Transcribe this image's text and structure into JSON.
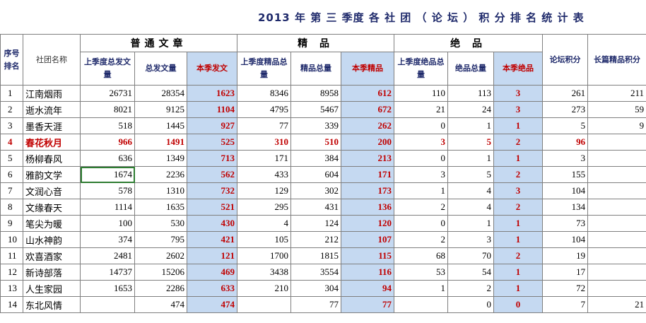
{
  "title": "2013 年 第 三 季度 各 社 团 （ 论 坛 ） 积 分   排 名 统 计 表",
  "headers": {
    "rank": "序号排名",
    "name": "社团名称",
    "group_regular": "普通文章",
    "group_jingpin": "精  品",
    "group_juepin": "绝  品",
    "prev_total_articles": "上季度总发文量",
    "total_articles": "总发文量",
    "this_quarter_articles": "本季发文",
    "prev_jingpin": "上季度精品总量",
    "total_jingpin": "精品总量",
    "this_quarter_jingpin": "本季精品",
    "prev_juepin": "上季度绝品总量",
    "total_juepin": "绝品总量",
    "this_quarter_juepin": "本季绝品",
    "forum_points": "论坛积分",
    "long_jingpin_points": "长篇精品积分"
  },
  "rows": [
    {
      "idx": "1",
      "name": "江南烟雨",
      "a1": "26731",
      "a2": "28354",
      "a3": "1623",
      "b1": "8346",
      "b2": "8958",
      "b3": "612",
      "c1": "110",
      "c2": "113",
      "c3": "3",
      "d": "261",
      "e": "211"
    },
    {
      "idx": "2",
      "name": "逝水流年",
      "a1": "8021",
      "a2": "9125",
      "a3": "1104",
      "b1": "4795",
      "b2": "5467",
      "b3": "672",
      "c1": "21",
      "c2": "24",
      "c3": "3",
      "d": "273",
      "e": "59"
    },
    {
      "idx": "3",
      "name": "墨香天涯",
      "a1": "518",
      "a2": "1445",
      "a3": "927",
      "b1": "77",
      "b2": "339",
      "b3": "262",
      "c1": "0",
      "c2": "1",
      "c3": "1",
      "d": "5",
      "e": "9"
    },
    {
      "idx": "4",
      "name": "春花秋月",
      "a1": "966",
      "a2": "1491",
      "a3": "525",
      "b1": "310",
      "b2": "510",
      "b3": "200",
      "c1": "3",
      "c2": "5",
      "c3": "2",
      "d": "96",
      "e": ""
    },
    {
      "idx": "5",
      "name": "杨柳春风",
      "a1": "636",
      "a2": "1349",
      "a3": "713",
      "b1": "171",
      "b2": "384",
      "b3": "213",
      "c1": "0",
      "c2": "1",
      "c3": "1",
      "d": "3",
      "e": ""
    },
    {
      "idx": "6",
      "name": "雅韵文学",
      "a1": "1674",
      "a2": "2236",
      "a3": "562",
      "b1": "433",
      "b2": "604",
      "b3": "171",
      "c1": "3",
      "c2": "5",
      "c3": "2",
      "d": "155",
      "e": ""
    },
    {
      "idx": "7",
      "name": "文润心音",
      "a1": "578",
      "a2": "1310",
      "a3": "732",
      "b1": "129",
      "b2": "302",
      "b3": "173",
      "c1": "1",
      "c2": "4",
      "c3": "3",
      "d": "104",
      "e": ""
    },
    {
      "idx": "8",
      "name": "文缘春天",
      "a1": "1114",
      "a2": "1635",
      "a3": "521",
      "b1": "295",
      "b2": "431",
      "b3": "136",
      "c1": "2",
      "c2": "4",
      "c3": "2",
      "d": "134",
      "e": ""
    },
    {
      "idx": "9",
      "name": "笔尖为暖",
      "a1": "100",
      "a2": "530",
      "a3": "430",
      "b1": "4",
      "b2": "124",
      "b3": "120",
      "c1": "0",
      "c2": "1",
      "c3": "1",
      "d": "73",
      "e": ""
    },
    {
      "idx": "10",
      "name": "山水神韵",
      "a1": "374",
      "a2": "795",
      "a3": "421",
      "b1": "105",
      "b2": "212",
      "b3": "107",
      "c1": "2",
      "c2": "3",
      "c3": "1",
      "d": "104",
      "e": ""
    },
    {
      "idx": "11",
      "name": "欢喜酒家",
      "a1": "2481",
      "a2": "2602",
      "a3": "121",
      "b1": "1700",
      "b2": "1815",
      "b3": "115",
      "c1": "68",
      "c2": "70",
      "c3": "2",
      "d": "19",
      "e": ""
    },
    {
      "idx": "12",
      "name": "新诗部落",
      "a1": "14737",
      "a2": "15206",
      "a3": "469",
      "b1": "3438",
      "b2": "3554",
      "b3": "116",
      "c1": "53",
      "c2": "54",
      "c3": "1",
      "d": "17",
      "e": ""
    },
    {
      "idx": "13",
      "name": "人生家园",
      "a1": "1653",
      "a2": "2286",
      "a3": "633",
      "b1": "210",
      "b2": "304",
      "b3": "94",
      "c1": "1",
      "c2": "2",
      "c3": "1",
      "d": "72",
      "e": ""
    },
    {
      "idx": "14",
      "name": "东北风情",
      "a1": "",
      "a2": "474",
      "a3": "474",
      "b1": "",
      "b2": "77",
      "b3": "77",
      "c1": "",
      "c2": "0",
      "c3": "0",
      "d": "7",
      "e": "21"
    }
  ],
  "highlight_row_color": "#C00000",
  "current_quarter_fill": "#C5D9F1"
}
